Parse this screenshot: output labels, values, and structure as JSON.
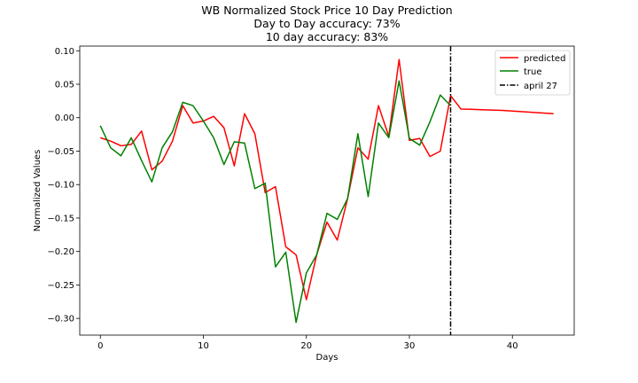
{
  "chart_data": {
    "type": "line",
    "title_lines": [
      "WB Normalized Stock Price 10 Day Prediction",
      "Day to Day accuracy: 73%",
      "10 day accuracy: 83%"
    ],
    "xlabel": "Days",
    "ylabel": "Normalized Values",
    "xlim": [
      -2,
      46
    ],
    "ylim": [
      -0.325,
      0.107
    ],
    "x_ticks": [
      0,
      10,
      20,
      30,
      40
    ],
    "y_ticks": [
      -0.3,
      -0.25,
      -0.2,
      -0.15,
      -0.1,
      -0.05,
      0.0,
      0.05,
      0.1
    ],
    "y_tick_labels": [
      "−0.30",
      "−0.25",
      "−0.20",
      "−0.15",
      "−0.10",
      "−0.05",
      "0.00",
      "0.05",
      "0.10"
    ],
    "legend_position": "top-right",
    "series": [
      {
        "name": "predicted",
        "color": "#ff0000",
        "x": [
          0,
          1,
          2,
          3,
          4,
          5,
          6,
          7,
          8,
          9,
          10,
          11,
          12,
          13,
          14,
          15,
          16,
          17,
          18,
          19,
          20,
          21,
          22,
          23,
          24,
          25,
          26,
          27,
          28,
          29,
          30,
          31,
          32,
          33,
          34,
          35,
          36,
          37,
          38,
          39,
          40,
          41,
          42,
          43,
          44
        ],
        "values": [
          -0.03,
          -0.035,
          -0.042,
          -0.04,
          -0.02,
          -0.078,
          -0.065,
          -0.035,
          0.018,
          -0.008,
          -0.005,
          0.002,
          -0.015,
          -0.072,
          0.006,
          -0.024,
          -0.112,
          -0.103,
          -0.193,
          -0.205,
          -0.272,
          -0.205,
          -0.156,
          -0.183,
          -0.121,
          -0.045,
          -0.062,
          0.018,
          -0.028,
          0.087,
          -0.034,
          -0.031,
          -0.058,
          -0.05,
          0.033,
          0.013,
          0.0125,
          0.012,
          0.0115,
          0.011,
          0.01,
          0.009,
          0.008,
          0.007,
          0.006
        ]
      },
      {
        "name": "true",
        "color": "#008000",
        "x": [
          0,
          1,
          2,
          3,
          4,
          5,
          6,
          7,
          8,
          9,
          10,
          11,
          12,
          13,
          14,
          15,
          16,
          17,
          18,
          19,
          20,
          21,
          22,
          23,
          24,
          25,
          26,
          27,
          28,
          29,
          30,
          31,
          32,
          33,
          34
        ],
        "values": [
          -0.012,
          -0.045,
          -0.057,
          -0.03,
          -0.064,
          -0.096,
          -0.045,
          -0.021,
          0.023,
          0.018,
          -0.005,
          -0.03,
          -0.07,
          -0.036,
          -0.038,
          -0.106,
          -0.098,
          -0.223,
          -0.201,
          -0.306,
          -0.232,
          -0.205,
          -0.143,
          -0.152,
          -0.121,
          -0.024,
          -0.118,
          -0.008,
          -0.03,
          0.055,
          -0.031,
          -0.041,
          -0.006,
          0.034,
          0.018
        ]
      },
      {
        "name": "april 27",
        "color": "#000000",
        "style": "dashdot",
        "vertical_x": 34
      }
    ]
  }
}
